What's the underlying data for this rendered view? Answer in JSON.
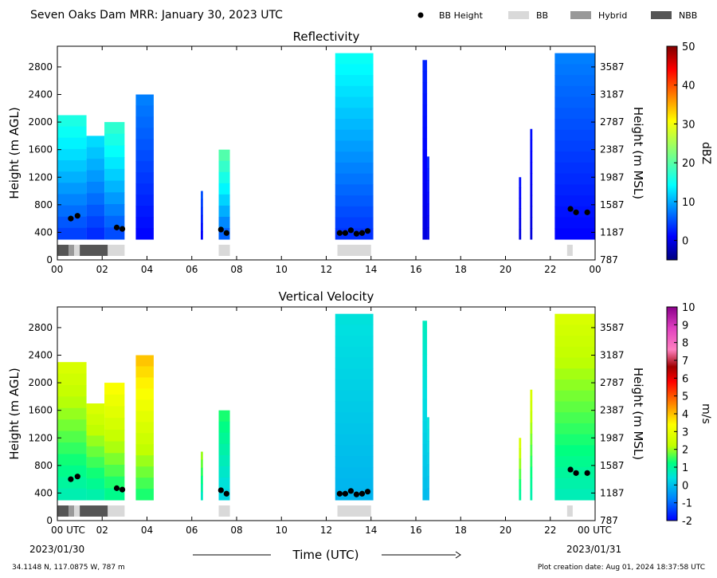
{
  "header": {
    "title": "Seven Oaks Dam MRR:  January 30, 2023 UTC",
    "legend": [
      {
        "label": "BB Height",
        "kind": "dot",
        "color": "#000000"
      },
      {
        "label": "BB",
        "kind": "swatch",
        "color": "#d9d9d9"
      },
      {
        "label": "Hybrid",
        "kind": "swatch",
        "color": "#999999"
      },
      {
        "label": "NBB",
        "kind": "swatch",
        "color": "#555555"
      }
    ]
  },
  "footer": {
    "location": "34.1148 N, 117.0875 W, 787 m",
    "creation": "Plot creation date: Aug 01, 2024 18:37:58 UTC",
    "xaxis_label": "Time (UTC)",
    "date_start": "2023/01/30",
    "date_end": "2023/01/31"
  },
  "chart_data": [
    {
      "type": "heatmap",
      "title": "Reflectivity",
      "ylabel": "Height (m AGL)",
      "ylabel_right": "Height (m MSL)",
      "x_ticks": [
        "00",
        "02",
        "04",
        "06",
        "08",
        "10",
        "12",
        "14",
        "16",
        "18",
        "20",
        "22",
        "00"
      ],
      "xlim": [
        0,
        24
      ],
      "ylim": [
        0,
        3100
      ],
      "y_ticks": [
        0,
        400,
        800,
        1200,
        1600,
        2000,
        2400,
        2800
      ],
      "y_ticks_right": [
        "787",
        "1187",
        "1587",
        "1987",
        "2387",
        "2787",
        "3187",
        "3587"
      ],
      "colorbar": {
        "label": "dBZ",
        "range": [
          -5,
          50
        ],
        "ticks": [
          "0",
          "10",
          "20",
          "30",
          "40",
          "50"
        ],
        "tick_values": [
          0,
          10,
          20,
          30,
          40,
          50
        ],
        "colormap": "jet"
      },
      "echo_columns": [
        {
          "t0": 0.0,
          "t1": 1.3,
          "top": 2100,
          "value": 15
        },
        {
          "t0": 1.3,
          "t1": 2.1,
          "top": 1800,
          "value": 12
        },
        {
          "t0": 2.1,
          "t1": 3.0,
          "top": 2000,
          "value": 16
        },
        {
          "t0": 3.5,
          "t1": 4.3,
          "top": 2400,
          "value": 8
        },
        {
          "t0": 6.4,
          "t1": 6.5,
          "top": 1000,
          "value": 6
        },
        {
          "t0": 7.2,
          "t1": 7.7,
          "top": 1600,
          "value": 18
        },
        {
          "t0": 12.4,
          "t1": 14.1,
          "top": 3000,
          "value": 14
        },
        {
          "t0": 16.3,
          "t1": 16.5,
          "top": 2900,
          "value": 4
        },
        {
          "t0": 16.5,
          "t1": 16.6,
          "top": 1500,
          "value": 4
        },
        {
          "t0": 20.6,
          "t1": 20.7,
          "top": 1200,
          "value": 3
        },
        {
          "t0": 21.1,
          "t1": 21.2,
          "top": 1900,
          "value": 3
        },
        {
          "t0": 22.2,
          "t1": 24.0,
          "top": 3000,
          "value": 8
        }
      ],
      "bb_height": [
        {
          "t": 0.6,
          "h": 600
        },
        {
          "t": 0.9,
          "h": 640
        },
        {
          "t": 2.65,
          "h": 470
        },
        {
          "t": 2.9,
          "h": 450
        },
        {
          "t": 7.3,
          "h": 440
        },
        {
          "t": 7.55,
          "h": 390
        },
        {
          "t": 12.6,
          "h": 390
        },
        {
          "t": 12.85,
          "h": 390
        },
        {
          "t": 13.1,
          "h": 430
        },
        {
          "t": 13.35,
          "h": 380
        },
        {
          "t": 13.6,
          "h": 390
        },
        {
          "t": 13.85,
          "h": 420
        },
        {
          "t": 22.9,
          "h": 740
        },
        {
          "t": 23.15,
          "h": 690
        },
        {
          "t": 23.65,
          "h": 690
        }
      ],
      "bb_type_bars": [
        {
          "t0": 0.0,
          "t1": 0.5,
          "type": "NBB"
        },
        {
          "t0": 0.5,
          "t1": 0.75,
          "type": "Hybrid"
        },
        {
          "t0": 0.75,
          "t1": 1.0,
          "type": "BB"
        },
        {
          "t0": 1.0,
          "t1": 2.25,
          "type": "NBB"
        },
        {
          "t0": 2.25,
          "t1": 3.0,
          "type": "BB"
        },
        {
          "t0": 7.2,
          "t1": 7.7,
          "type": "BB"
        },
        {
          "t0": 12.5,
          "t1": 14.0,
          "type": "BB"
        },
        {
          "t0": 22.75,
          "t1": 23.0,
          "type": "BB"
        }
      ]
    },
    {
      "type": "heatmap",
      "title": "Vertical Velocity",
      "ylabel": "Height (m AGL)",
      "ylabel_right": "Height (m MSL)",
      "x_ticks": [
        "00 UTC",
        "02",
        "04",
        "06",
        "08",
        "10",
        "12",
        "14",
        "16",
        "18",
        "20",
        "22",
        "00 UTC"
      ],
      "xlim": [
        0,
        24
      ],
      "ylim": [
        0,
        3100
      ],
      "y_ticks": [
        0,
        400,
        800,
        1200,
        1600,
        2000,
        2400,
        2800
      ],
      "y_ticks_right": [
        "787",
        "1187",
        "1587",
        "1987",
        "2387",
        "2787",
        "3187",
        "3587"
      ],
      "colorbar": {
        "label": "m/s",
        "range": [
          -2,
          10
        ],
        "ticks": [
          "-2",
          "-1",
          "0",
          "1",
          "2",
          "3",
          "4",
          "5",
          "6",
          "7",
          "8",
          "9",
          "10"
        ],
        "tick_values": [
          -2,
          -1,
          0,
          1,
          2,
          3,
          4,
          5,
          6,
          7,
          8,
          9,
          10
        ],
        "colormap": "velocity"
      },
      "echo_columns": [
        {
          "t0": 0.0,
          "t1": 1.3,
          "top": 2300,
          "value": 2.5
        },
        {
          "t0": 1.3,
          "t1": 2.1,
          "top": 1700,
          "value": 2.5
        },
        {
          "t0": 2.1,
          "t1": 3.0,
          "top": 2000,
          "value": 3.0
        },
        {
          "t0": 3.5,
          "t1": 4.3,
          "top": 2400,
          "value": 3.5
        },
        {
          "t0": 6.4,
          "t1": 6.5,
          "top": 1000,
          "value": 2.0
        },
        {
          "t0": 7.2,
          "t1": 7.7,
          "top": 1600,
          "value": 1.5
        },
        {
          "t0": 12.4,
          "t1": 14.1,
          "top": 3000,
          "value": 0.8
        },
        {
          "t0": 16.3,
          "t1": 16.5,
          "top": 2900,
          "value": 1.0
        },
        {
          "t0": 16.5,
          "t1": 16.6,
          "top": 1500,
          "value": 0.8
        },
        {
          "t0": 20.6,
          "t1": 20.7,
          "top": 1200,
          "value": 2.5
        },
        {
          "t0": 21.1,
          "t1": 21.2,
          "top": 1900,
          "value": 2.5
        },
        {
          "t0": 22.2,
          "t1": 24.0,
          "top": 3000,
          "value": 2.5
        }
      ],
      "bb_height": [
        {
          "t": 0.6,
          "h": 600
        },
        {
          "t": 0.9,
          "h": 640
        },
        {
          "t": 2.65,
          "h": 470
        },
        {
          "t": 2.9,
          "h": 450
        },
        {
          "t": 7.3,
          "h": 440
        },
        {
          "t": 7.55,
          "h": 390
        },
        {
          "t": 12.6,
          "h": 390
        },
        {
          "t": 12.85,
          "h": 390
        },
        {
          "t": 13.1,
          "h": 430
        },
        {
          "t": 13.35,
          "h": 380
        },
        {
          "t": 13.6,
          "h": 390
        },
        {
          "t": 13.85,
          "h": 420
        },
        {
          "t": 22.9,
          "h": 740
        },
        {
          "t": 23.15,
          "h": 690
        },
        {
          "t": 23.65,
          "h": 690
        }
      ],
      "bb_type_bars": [
        {
          "t0": 0.0,
          "t1": 0.5,
          "type": "NBB"
        },
        {
          "t0": 0.5,
          "t1": 0.75,
          "type": "Hybrid"
        },
        {
          "t0": 0.75,
          "t1": 1.0,
          "type": "BB"
        },
        {
          "t0": 1.0,
          "t1": 2.25,
          "type": "NBB"
        },
        {
          "t0": 2.25,
          "t1": 3.0,
          "type": "BB"
        },
        {
          "t0": 7.2,
          "t1": 7.7,
          "type": "BB"
        },
        {
          "t0": 12.5,
          "t1": 14.0,
          "type": "BB"
        },
        {
          "t0": 22.75,
          "t1": 23.0,
          "type": "BB"
        }
      ]
    }
  ]
}
